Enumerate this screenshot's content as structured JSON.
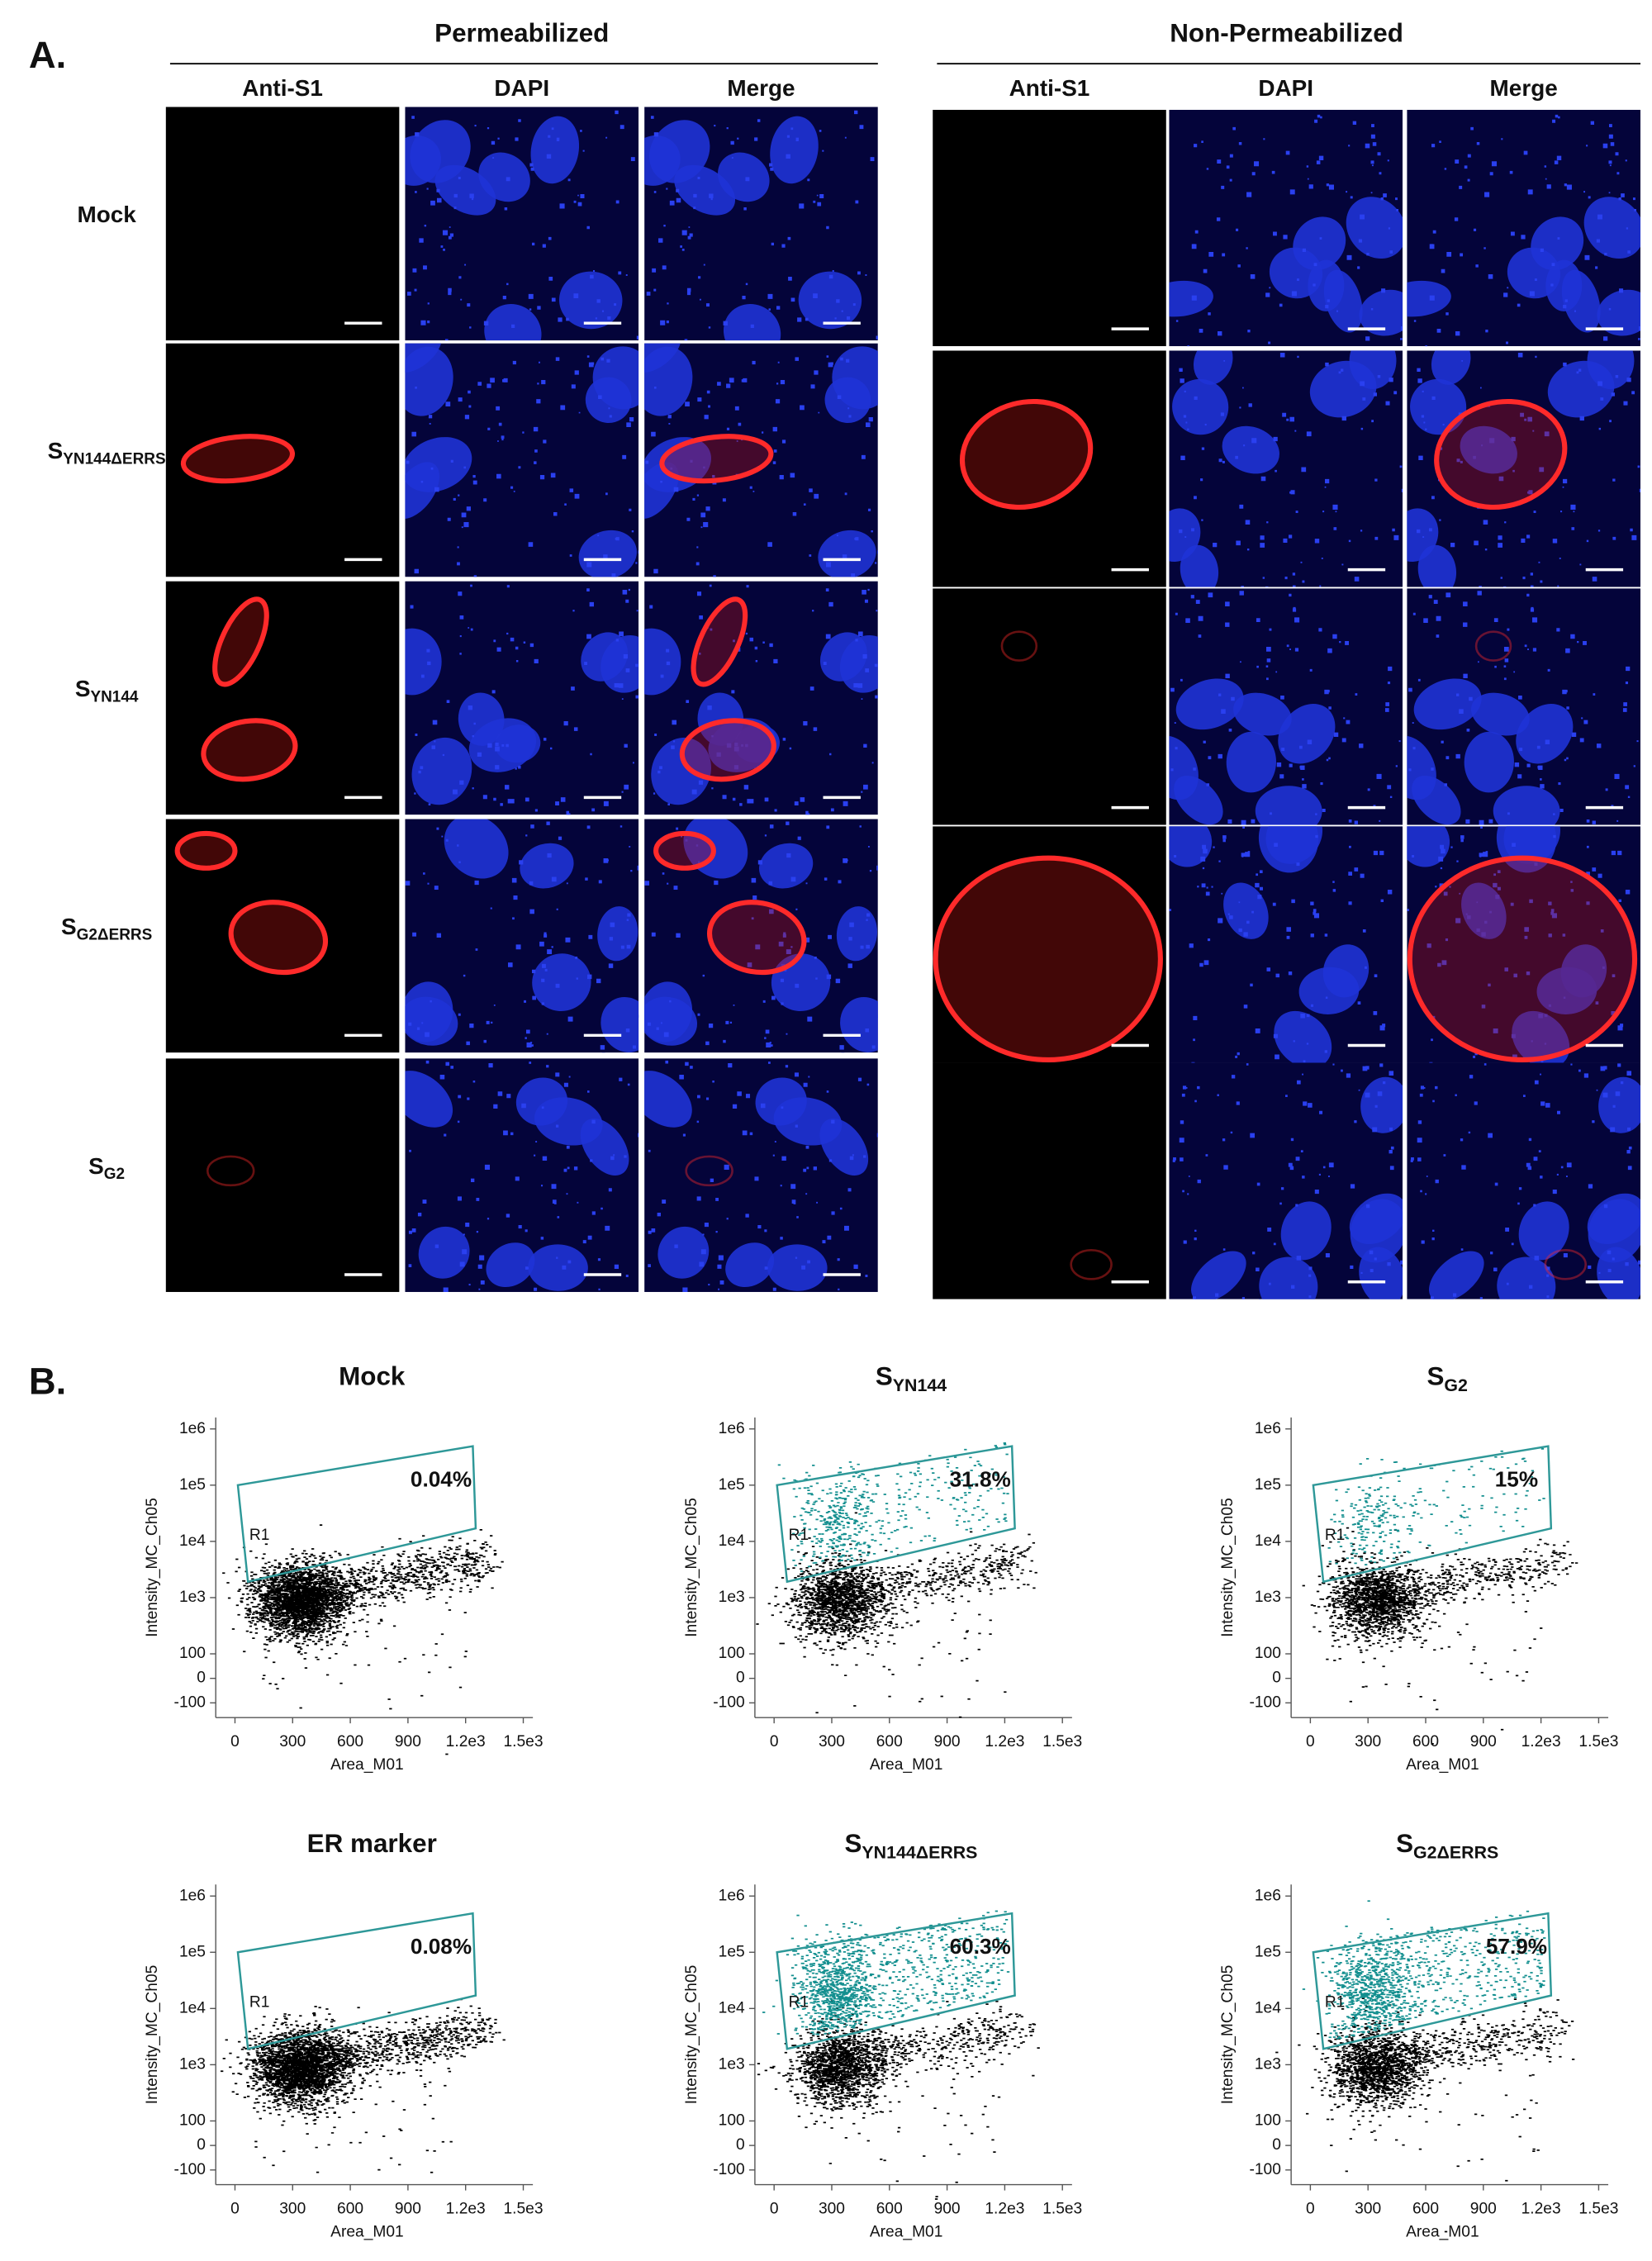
{
  "panel_a": {
    "label": "A.",
    "groups": [
      {
        "title": "Permeabilized",
        "columns": [
          "Anti-S1",
          "DAPI",
          "Merge"
        ]
      },
      {
        "title": "Non-Permeabilized",
        "columns": [
          "Anti-S1",
          "DAPI",
          "Merge"
        ]
      }
    ],
    "rows": [
      {
        "main": "Mock"
      },
      {
        "main": "S",
        "sub": "YN144ΔERRS"
      },
      {
        "main": "S",
        "sub": "YN144"
      },
      {
        "main": "S",
        "sub": "G2ΔERRS"
      },
      {
        "main": "S",
        "sub": "G2"
      }
    ]
  },
  "panel_b_label": "B.",
  "chart_data": [
    {
      "type": "scatter",
      "title": "Mock",
      "xlabel": "Area_M01",
      "ylabel": "Intensity_MC_Ch05",
      "gate": "R1",
      "gate_percent": "0.04%",
      "xlim": [
        -100,
        1550
      ],
      "ylim": [
        -160,
        1600000
      ],
      "xticks": [
        0,
        300,
        600,
        900,
        {
          "value": 1200,
          "label": "1.2e3"
        },
        {
          "value": 1500,
          "label": "1.5e3"
        }
      ],
      "yticks": [
        -100,
        0,
        100,
        {
          "value": 1000,
          "label": "1e3"
        },
        {
          "value": 10000,
          "label": "1e4"
        },
        {
          "value": 100000,
          "label": "1e5"
        },
        {
          "value": 1000000,
          "label": "1e6"
        }
      ]
    },
    {
      "type": "scatter",
      "title": "S",
      "title_sub": "YN144",
      "xlabel": "Area_M01",
      "ylabel": "Intensity_MC_Ch05",
      "gate": "R1",
      "gate_percent": "31.8%",
      "xlim": [
        -100,
        1550
      ],
      "ylim": [
        -160,
        1600000
      ],
      "xticks": [
        0,
        300,
        600,
        900,
        {
          "value": 1200,
          "label": "1.2e3"
        },
        {
          "value": 1500,
          "label": "1.5e3"
        }
      ],
      "yticks": [
        -100,
        0,
        100,
        {
          "value": 1000,
          "label": "1e3"
        },
        {
          "value": 10000,
          "label": "1e4"
        },
        {
          "value": 100000,
          "label": "1e5"
        },
        {
          "value": 1000000,
          "label": "1e6"
        }
      ]
    },
    {
      "type": "scatter",
      "title": "S",
      "title_sub": "G2",
      "xlabel": "Area_M01",
      "ylabel": "Intensity_MC_Ch05",
      "gate": "R1",
      "gate_percent": "15%",
      "xlim": [
        -100,
        1550
      ],
      "ylim": [
        -160,
        1600000
      ],
      "xticks": [
        0,
        300,
        600,
        900,
        {
          "value": 1200,
          "label": "1.2e3"
        },
        {
          "value": 1500,
          "label": "1.5e3"
        }
      ],
      "yticks": [
        -100,
        0,
        100,
        {
          "value": 1000,
          "label": "1e3"
        },
        {
          "value": 10000,
          "label": "1e4"
        },
        {
          "value": 100000,
          "label": "1e5"
        },
        {
          "value": 1000000,
          "label": "1e6"
        }
      ]
    },
    {
      "type": "scatter",
      "title": "ER marker",
      "xlabel": "Area_M01",
      "ylabel": "Intensity_MC_Ch05",
      "gate": "R1",
      "gate_percent": "0.08%",
      "xlim": [
        -100,
        1550
      ],
      "ylim": [
        -160,
        1600000
      ],
      "xticks": [
        0,
        300,
        600,
        900,
        {
          "value": 1200,
          "label": "1.2e3"
        },
        {
          "value": 1500,
          "label": "1.5e3"
        }
      ],
      "yticks": [
        -100,
        0,
        100,
        {
          "value": 1000,
          "label": "1e3"
        },
        {
          "value": 10000,
          "label": "1e4"
        },
        {
          "value": 100000,
          "label": "1e5"
        },
        {
          "value": 1000000,
          "label": "1e6"
        }
      ]
    },
    {
      "type": "scatter",
      "title": "S",
      "title_sub": "YN144ΔERRS",
      "xlabel": "Area_M01",
      "ylabel": "Intensity_MC_Ch05",
      "gate": "R1",
      "gate_percent": "60.3%",
      "xlim": [
        -100,
        1550
      ],
      "ylim": [
        -160,
        1600000
      ],
      "xticks": [
        0,
        300,
        600,
        900,
        {
          "value": 1200,
          "label": "1.2e3"
        },
        {
          "value": 1500,
          "label": "1.5e3"
        }
      ],
      "yticks": [
        -100,
        0,
        100,
        {
          "value": 1000,
          "label": "1e3"
        },
        {
          "value": 10000,
          "label": "1e4"
        },
        {
          "value": 100000,
          "label": "1e5"
        },
        {
          "value": 1000000,
          "label": "1e6"
        }
      ]
    },
    {
      "type": "scatter",
      "title": "S",
      "title_sub": "G2ΔERRS",
      "xlabel": "Area_M01",
      "ylabel": "Intensity_MC_Ch05",
      "gate": "R1",
      "gate_percent": "57.9%",
      "xlim": [
        -100,
        1550
      ],
      "ylim": [
        -160,
        1600000
      ],
      "xticks": [
        0,
        300,
        600,
        900,
        {
          "value": 1200,
          "label": "1.2e3"
        },
        {
          "value": 1500,
          "label": "1.5e3"
        }
      ],
      "yticks": [
        -100,
        0,
        100,
        {
          "value": 1000,
          "label": "1e3"
        },
        {
          "value": 10000,
          "label": "1e4"
        },
        {
          "value": 100000,
          "label": "1e5"
        },
        {
          "value": 1000000,
          "label": "1e6"
        }
      ]
    }
  ]
}
